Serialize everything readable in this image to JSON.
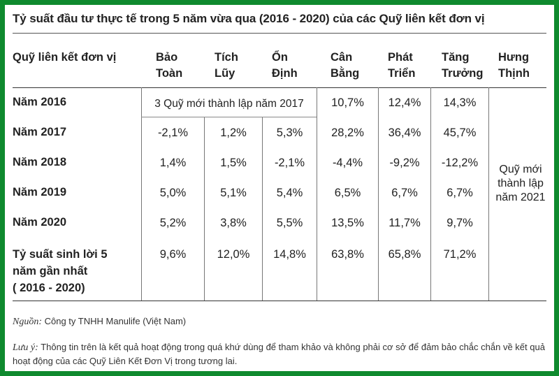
{
  "title": "Tỷ suất đầu tư thực tế trong 5 năm vừa qua (2016 - 2020) của các Quỹ liên kết đơn vị",
  "header": {
    "first_col": "Quỹ liên kết đơn vị",
    "funds": [
      {
        "line1": "Bảo",
        "line2": "Toàn"
      },
      {
        "line1": "Tích",
        "line2": "Lũy"
      },
      {
        "line1": "Ổn",
        "line2": "Định"
      },
      {
        "line1": "Cân",
        "line2": "Bằng"
      },
      {
        "line1": "Phát",
        "line2": "Triển"
      },
      {
        "line1": "Tăng",
        "line2": "Trưởng"
      },
      {
        "line1": "Hưng",
        "line2": "Thịnh"
      }
    ]
  },
  "rows": [
    {
      "label": "Năm 2016",
      "values": [
        "",
        "",
        "",
        "10,7%",
        "12,4%",
        "14,3%"
      ]
    },
    {
      "label": "Năm 2017",
      "values": [
        "-2,1%",
        "1,2%",
        "5,3%",
        "28,2%",
        "36,4%",
        "45,7%"
      ]
    },
    {
      "label": "Năm 2018",
      "values": [
        "1,4%",
        "1,5%",
        "-2,1%",
        "-4,4%",
        "-9,2%",
        "-12,2%"
      ]
    },
    {
      "label": "Năm 2019",
      "values": [
        "5,0%",
        "5,1%",
        "5,4%",
        "6,5%",
        "6,7%",
        "6,7%"
      ]
    },
    {
      "label": "Năm 2020",
      "values": [
        "5,2%",
        "3,8%",
        "5,5%",
        "13,5%",
        "11,7%",
        "9,7%"
      ]
    },
    {
      "label_lines": [
        "Tỷ suất sinh lời 5",
        "năm gần nhất",
        "( 2016 - 2020)"
      ],
      "values": [
        "9,6%",
        "12,0%",
        "14,8%",
        "63,8%",
        "65,8%",
        "71,2%"
      ]
    }
  ],
  "merged_2016": "3 Quỹ mới thành lập năm 2017",
  "hung_thinh_note": [
    "Quỹ mới",
    "thành lập",
    "năm 2021"
  ],
  "source": {
    "label": "Nguồn:",
    "text": " Công ty TNHH Manulife (Việt Nam)"
  },
  "note": {
    "label": "Lưu ý:",
    "text": " Thông tin trên là kết quả hoạt động trong quá khứ dùng để tham khảo và không phải cơ sở để đảm bảo chắc chắn về kết quả hoạt động của các Quỹ Liên Kết Đơn Vị trong tương lai."
  }
}
